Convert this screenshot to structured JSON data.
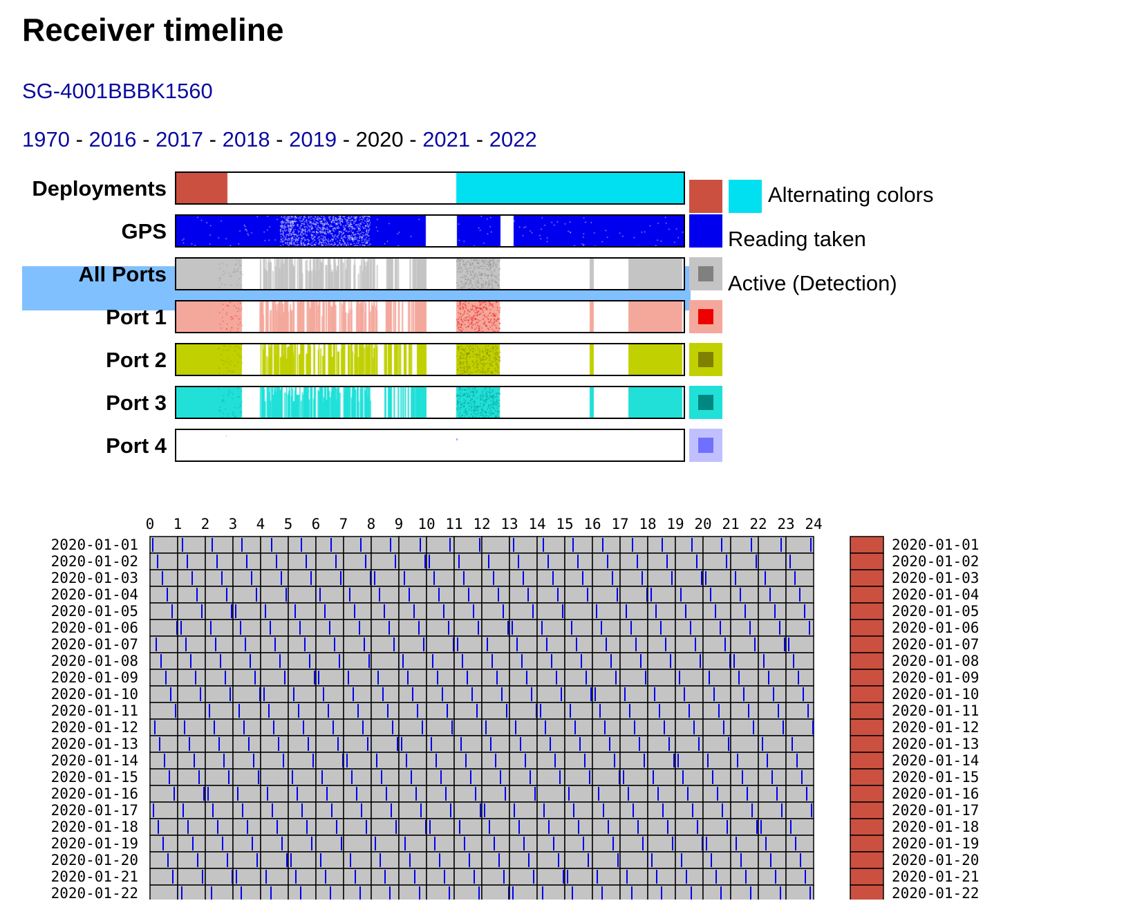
{
  "page": {
    "title": "Receiver timeline",
    "receiver_link": "SG-4001BBBK1560",
    "years": [
      {
        "label": "1970",
        "current": false
      },
      {
        "label": "2016",
        "current": false
      },
      {
        "label": "2017",
        "current": false
      },
      {
        "label": "2018",
        "current": false
      },
      {
        "label": "2019",
        "current": false
      },
      {
        "label": "2020",
        "current": true
      },
      {
        "label": "2021",
        "current": false
      },
      {
        "label": "2022",
        "current": false
      }
    ],
    "year_separator": " - "
  },
  "timeline": {
    "rows": [
      {
        "label": "Deployments",
        "color": "#cc5040",
        "highlighted": false
      },
      {
        "label": "GPS",
        "color": "#0000ee",
        "highlighted": false
      },
      {
        "label": "All Ports",
        "color": "#c4c4c4",
        "highlighted": true
      },
      {
        "label": "Port 1",
        "color": "#f4a89c",
        "highlighted": false
      },
      {
        "label": "Port 2",
        "color": "#c0d000",
        "highlighted": false
      },
      {
        "label": "Port 3",
        "color": "#20e0d8",
        "highlighted": false
      },
      {
        "label": "Port 4",
        "color": "#ffffff",
        "highlighted": false
      }
    ],
    "legend": {
      "deployments_text": "Alternating colors",
      "gps_text": "Reading taken",
      "ports_text": "Active (Detection)",
      "swatches": [
        {
          "outer": "#cc5040",
          "inner": "#cc5040"
        },
        {
          "outer": "#00e0f0",
          "inner": "#00e0f0"
        },
        {
          "outer": "#0000ee",
          "inner": "#0000ee"
        },
        {
          "outer": "#c4c4c4",
          "inner": "#808080"
        },
        {
          "outer": "#f4a89c",
          "inner": "#ee0000"
        },
        {
          "outer": "#c0d000",
          "inner": "#808000"
        },
        {
          "outer": "#20e0d8",
          "inner": "#008880"
        },
        {
          "outer": "#c0c0ff",
          "inner": "#7070ff"
        }
      ]
    }
  },
  "hourly": {
    "hours": [
      "0",
      "1",
      "2",
      "3",
      "4",
      "5",
      "6",
      "7",
      "8",
      "9",
      "10",
      "11",
      "12",
      "13",
      "14",
      "15",
      "16",
      "17",
      "18",
      "19",
      "20",
      "21",
      "22",
      "23",
      "24"
    ],
    "days": [
      "2020-01-01",
      "2020-01-02",
      "2020-01-03",
      "2020-01-04",
      "2020-01-05",
      "2020-01-06",
      "2020-01-07",
      "2020-01-08",
      "2020-01-09",
      "2020-01-10",
      "2020-01-11",
      "2020-01-12",
      "2020-01-13",
      "2020-01-14",
      "2020-01-15",
      "2020-01-16",
      "2020-01-17",
      "2020-01-18",
      "2020-01-19",
      "2020-01-20",
      "2020-01-21",
      "2020-01-22"
    ],
    "cell_color": "#c4c4c4",
    "gps_tick_color": "#0000ee",
    "deployment_color": "#cc5040"
  }
}
